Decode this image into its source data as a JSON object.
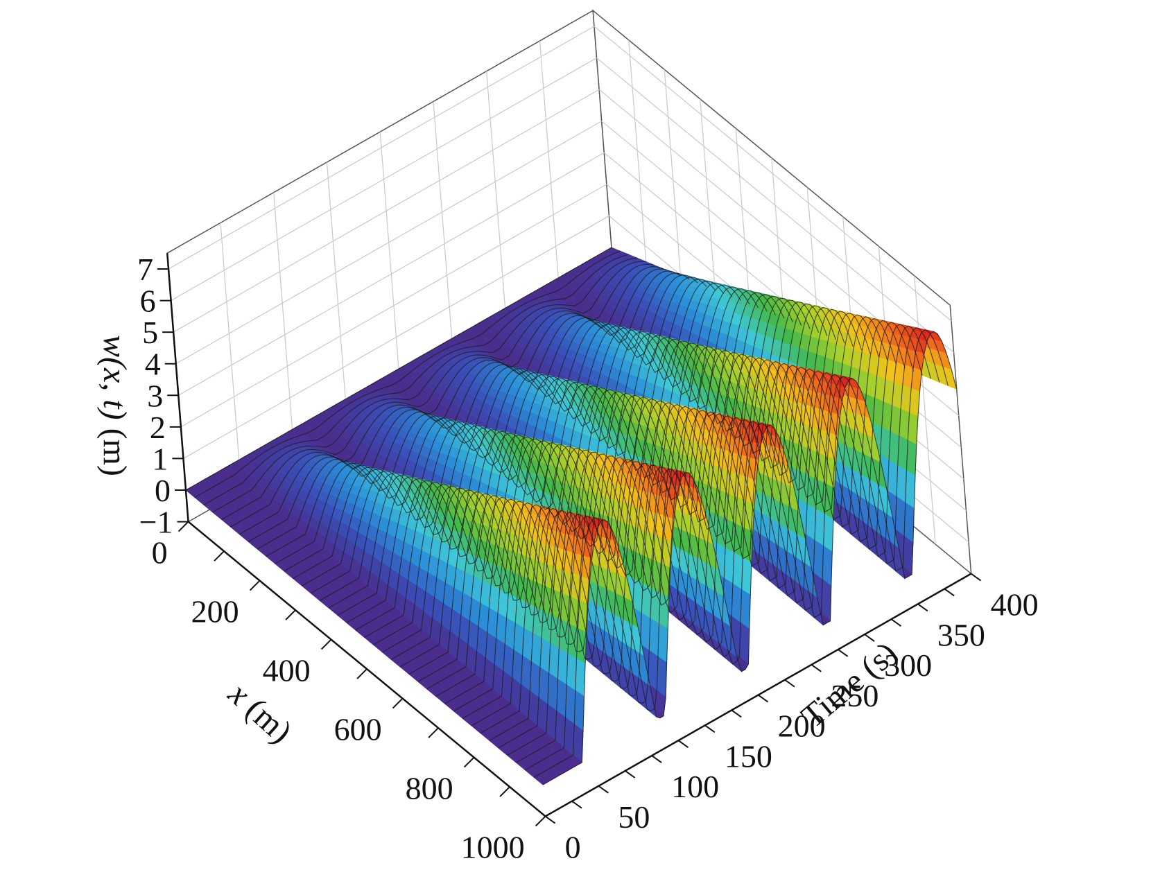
{
  "chart_data": {
    "type": "surface",
    "xlabel_var": "x",
    "xlabel_unit": " (m)",
    "ylabel": "Time (s)",
    "zlabel_var": "w(x, t)",
    "zlabel_unit": " (m)",
    "x_ticks": [
      "0",
      "200",
      "400",
      "600",
      "800",
      "1000"
    ],
    "t_ticks": [
      "0",
      "50",
      "100",
      "150",
      "200",
      "250",
      "300",
      "350",
      "400"
    ],
    "z_ticks": [
      "−1",
      "0",
      "1",
      "2",
      "3",
      "4",
      "5",
      "6",
      "7"
    ],
    "xlim": [
      0,
      1000
    ],
    "tlim": [
      0,
      400
    ],
    "zlim": [
      -1,
      7.5
    ],
    "grid": true,
    "colormap": "rainbow",
    "colormap_stops": [
      "#4a2d8c",
      "#3a4fb8",
      "#2b8ed8",
      "#3fc8d8",
      "#43b84a",
      "#a8d12c",
      "#f3c21a",
      "#f06a1b",
      "#d6171f"
    ],
    "wave_peaks": [
      {
        "t": 72,
        "amplitude": 7.0
      },
      {
        "t": 150,
        "amplitude": 7.0
      },
      {
        "t": 228,
        "amplitude": 7.0
      },
      {
        "t": 305,
        "amplitude": 7.0
      },
      {
        "t": 382,
        "amplitude": 7.0
      }
    ],
    "description_of_surface": {
      "pulse_shape": "sine arch",
      "peak_amplitude": 7.0,
      "ramp_start_x": 0,
      "ramp_end_x": 1000
    }
  }
}
